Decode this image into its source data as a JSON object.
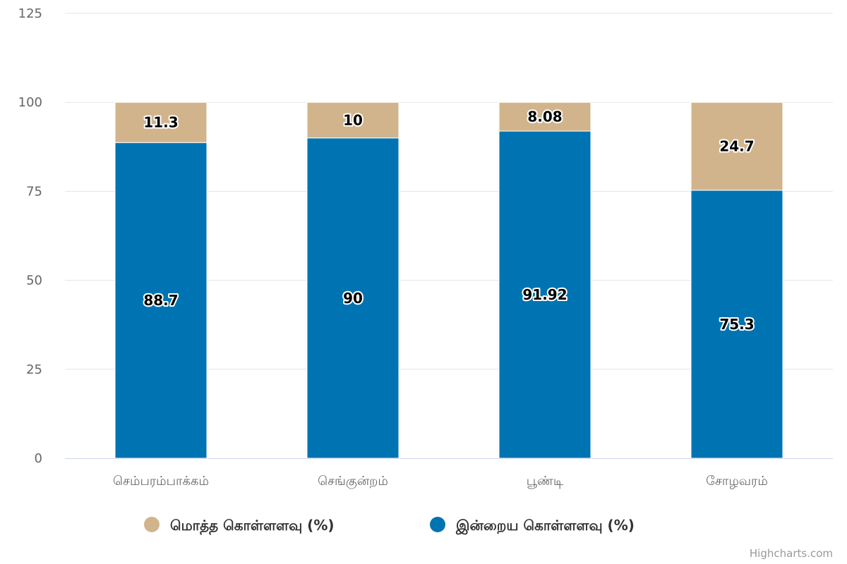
{
  "chart_data": {
    "type": "bar",
    "stacked": true,
    "categories": [
      "செம்பரம்பாக்கம்",
      "செங்குன்றம்",
      "பூண்டி",
      "சோழவரம்"
    ],
    "series": [
      {
        "name": "மொத்த கொள்ளளவு (%)",
        "color": "#d2b48c",
        "values": [
          11.3,
          10,
          8.08,
          24.7
        ]
      },
      {
        "name": "இன்றைய கொள்ளளவு (%)",
        "color": "#0074b2",
        "values": [
          88.7,
          90,
          91.92,
          75.3
        ]
      }
    ],
    "ylim": [
      0,
      125
    ],
    "yticks": [
      0,
      25,
      50,
      75,
      100,
      125
    ],
    "grid": true,
    "legend": "bottom-center",
    "credit": "Highcharts.com"
  }
}
